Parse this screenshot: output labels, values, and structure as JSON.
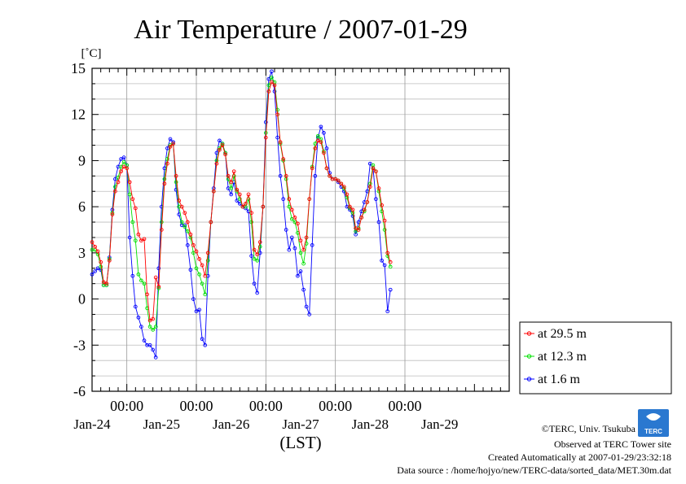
{
  "chart_data": {
    "type": "line",
    "title": "Air Temperature / 2007-01-29",
    "ylabel": "[˚C]",
    "xlabel": "(LST)",
    "ylim": [
      -6,
      15
    ],
    "yticks": [
      "15",
      "12",
      "9",
      "6",
      "3",
      "0",
      "-3",
      "-6"
    ],
    "x_range_hours": [
      -12,
      132
    ],
    "midnight_labels": [
      "00:00",
      "00:00",
      "00:00",
      "00:00",
      "00:00"
    ],
    "date_labels": [
      "Jan-24",
      "Jan-25",
      "Jan-26",
      "Jan-27",
      "Jan-28",
      "Jan-29"
    ],
    "grid": true,
    "legend_position": "right",
    "series": [
      {
        "name": "at 29.5 m",
        "color": "#ff0000",
        "points": [
          [
            -12,
            3.7
          ],
          [
            -11,
            3.4
          ],
          [
            -10,
            3.1
          ],
          [
            -9,
            2.4
          ],
          [
            -8,
            1.1
          ],
          [
            -7,
            1.0
          ],
          [
            -6,
            2.5
          ],
          [
            -5,
            5.5
          ],
          [
            -4,
            7.0
          ],
          [
            -3,
            7.6
          ],
          [
            -2,
            8.3
          ],
          [
            -1,
            8.6
          ],
          [
            0,
            8.5
          ],
          [
            1,
            7.6
          ],
          [
            2,
            6.5
          ],
          [
            3,
            5.9
          ],
          [
            4,
            4.2
          ],
          [
            5,
            3.8
          ],
          [
            6,
            3.9
          ],
          [
            7,
            0.3
          ],
          [
            8,
            -1.4
          ],
          [
            9,
            -1.3
          ],
          [
            10,
            1.4
          ],
          [
            11,
            0.8
          ],
          [
            12,
            4.5
          ],
          [
            13,
            7.5
          ],
          [
            14,
            8.8
          ],
          [
            15,
            9.9
          ],
          [
            16,
            10.1
          ],
          [
            17,
            8.0
          ],
          [
            18,
            6.4
          ],
          [
            19,
            6.0
          ],
          [
            20,
            5.6
          ],
          [
            21,
            5.0
          ],
          [
            22,
            4.2
          ],
          [
            23,
            3.5
          ],
          [
            24,
            3.1
          ],
          [
            25,
            2.6
          ],
          [
            26,
            2.2
          ],
          [
            27,
            1.5
          ],
          [
            28,
            3.0
          ],
          [
            29,
            5.0
          ],
          [
            30,
            7.0
          ],
          [
            31,
            8.8
          ],
          [
            32,
            9.7
          ],
          [
            33,
            10.0
          ],
          [
            34,
            9.4
          ],
          [
            35,
            8.0
          ],
          [
            36,
            7.6
          ],
          [
            37,
            8.3
          ],
          [
            38,
            7.1
          ],
          [
            39,
            6.8
          ],
          [
            40,
            6.0
          ],
          [
            41,
            6.2
          ],
          [
            42,
            6.8
          ],
          [
            43,
            5.6
          ],
          [
            44,
            3.2
          ],
          [
            45,
            2.9
          ],
          [
            46,
            3.7
          ],
          [
            47,
            6.0
          ],
          [
            48,
            10.5
          ],
          [
            49,
            13.5
          ],
          [
            50,
            14.1
          ],
          [
            51,
            13.9
          ],
          [
            52,
            12.0
          ],
          [
            53,
            10.2
          ],
          [
            54,
            9.1
          ],
          [
            55,
            8.0
          ],
          [
            56,
            6.5
          ],
          [
            57,
            5.8
          ],
          [
            58,
            5.3
          ],
          [
            59,
            4.9
          ],
          [
            60,
            3.8
          ],
          [
            61,
            3.2
          ],
          [
            62,
            4.0
          ],
          [
            63,
            6.5
          ],
          [
            64,
            8.5
          ],
          [
            65,
            9.8
          ],
          [
            66,
            10.3
          ],
          [
            67,
            10.2
          ],
          [
            68,
            9.5
          ],
          [
            69,
            8.5
          ],
          [
            70,
            8.0
          ],
          [
            71,
            7.8
          ],
          [
            72,
            7.8
          ],
          [
            73,
            7.7
          ],
          [
            74,
            7.5
          ],
          [
            75,
            7.3
          ],
          [
            76,
            6.8
          ],
          [
            77,
            6.0
          ],
          [
            78,
            5.8
          ],
          [
            79,
            4.6
          ],
          [
            80,
            4.5
          ],
          [
            81,
            5.3
          ],
          [
            82,
            5.8
          ],
          [
            83,
            6.3
          ],
          [
            84,
            7.3
          ],
          [
            85,
            8.5
          ],
          [
            86,
            8.3
          ],
          [
            87,
            7.2
          ],
          [
            88,
            6.1
          ],
          [
            89,
            5.1
          ],
          [
            90,
            3.0
          ],
          [
            91,
            2.4
          ]
        ]
      },
      {
        "name": "at 12.3 m",
        "color": "#00e000",
        "points": [
          [
            -12,
            3.2
          ],
          [
            -11,
            3.2
          ],
          [
            -10,
            2.9
          ],
          [
            -9,
            2.1
          ],
          [
            -8,
            0.9
          ],
          [
            -7,
            0.9
          ],
          [
            -6,
            2.6
          ],
          [
            -5,
            5.6
          ],
          [
            -4,
            7.3
          ],
          [
            -3,
            7.9
          ],
          [
            -2,
            8.6
          ],
          [
            -1,
            8.9
          ],
          [
            0,
            8.7
          ],
          [
            1,
            6.8
          ],
          [
            2,
            5.0
          ],
          [
            3,
            3.8
          ],
          [
            4,
            1.6
          ],
          [
            5,
            1.2
          ],
          [
            6,
            1.0
          ],
          [
            7,
            -0.6
          ],
          [
            8,
            -1.8
          ],
          [
            9,
            -2.0
          ],
          [
            10,
            -1.8
          ],
          [
            11,
            0.7
          ],
          [
            12,
            5.0
          ],
          [
            13,
            7.8
          ],
          [
            14,
            9.1
          ],
          [
            15,
            10.0
          ],
          [
            16,
            10.1
          ],
          [
            17,
            7.6
          ],
          [
            18,
            6.0
          ],
          [
            19,
            5.0
          ],
          [
            20,
            4.7
          ],
          [
            21,
            4.4
          ],
          [
            22,
            4.0
          ],
          [
            23,
            3.0
          ],
          [
            24,
            2.0
          ],
          [
            25,
            1.6
          ],
          [
            26,
            1.0
          ],
          [
            27,
            0.3
          ],
          [
            28,
            2.5
          ],
          [
            29,
            5.0
          ],
          [
            30,
            7.0
          ],
          [
            31,
            9.0
          ],
          [
            32,
            9.8
          ],
          [
            33,
            10.1
          ],
          [
            34,
            9.5
          ],
          [
            35,
            7.8
          ],
          [
            36,
            7.2
          ],
          [
            37,
            8.0
          ],
          [
            38,
            7.0
          ],
          [
            39,
            6.5
          ],
          [
            40,
            6.0
          ],
          [
            41,
            6.0
          ],
          [
            42,
            6.5
          ],
          [
            43,
            5.0
          ],
          [
            44,
            2.6
          ],
          [
            45,
            2.5
          ],
          [
            46,
            3.4
          ],
          [
            47,
            6.0
          ],
          [
            48,
            10.8
          ],
          [
            49,
            13.9
          ],
          [
            50,
            14.4
          ],
          [
            51,
            14.1
          ],
          [
            52,
            12.3
          ],
          [
            53,
            10.1
          ],
          [
            54,
            9.0
          ],
          [
            55,
            7.8
          ],
          [
            56,
            6.0
          ],
          [
            57,
            5.2
          ],
          [
            58,
            5.0
          ],
          [
            59,
            4.3
          ],
          [
            60,
            3.0
          ],
          [
            61,
            2.3
          ],
          [
            62,
            3.6
          ],
          [
            63,
            6.5
          ],
          [
            64,
            8.6
          ],
          [
            65,
            10.1
          ],
          [
            66,
            10.6
          ],
          [
            67,
            10.4
          ],
          [
            68,
            9.6
          ],
          [
            69,
            8.5
          ],
          [
            70,
            8.0
          ],
          [
            71,
            7.8
          ],
          [
            72,
            7.8
          ],
          [
            73,
            7.7
          ],
          [
            74,
            7.5
          ],
          [
            75,
            7.2
          ],
          [
            76,
            6.6
          ],
          [
            77,
            5.9
          ],
          [
            78,
            5.6
          ],
          [
            79,
            4.4
          ],
          [
            80,
            4.6
          ],
          [
            81,
            5.3
          ],
          [
            82,
            5.7
          ],
          [
            83,
            6.3
          ],
          [
            84,
            7.5
          ],
          [
            85,
            8.7
          ],
          [
            86,
            8.3
          ],
          [
            87,
            7.0
          ],
          [
            88,
            5.7
          ],
          [
            89,
            4.5
          ],
          [
            90,
            2.8
          ],
          [
            91,
            2.1
          ]
        ]
      },
      {
        "name": "at 1.6 m",
        "color": "#0000ff",
        "points": [
          [
            -12,
            1.6
          ],
          [
            -11,
            1.8
          ],
          [
            -10,
            2.0
          ],
          [
            -9,
            1.9
          ],
          [
            -8,
            0.9
          ],
          [
            -7,
            0.9
          ],
          [
            -6,
            2.7
          ],
          [
            -5,
            5.8
          ],
          [
            -4,
            7.8
          ],
          [
            -3,
            8.6
          ],
          [
            -2,
            9.1
          ],
          [
            -1,
            9.2
          ],
          [
            0,
            8.7
          ],
          [
            1,
            4.0
          ],
          [
            2,
            1.5
          ],
          [
            3,
            -0.5
          ],
          [
            4,
            -1.2
          ],
          [
            5,
            -1.8
          ],
          [
            6,
            -2.7
          ],
          [
            7,
            -3.0
          ],
          [
            8,
            -3.0
          ],
          [
            9,
            -3.3
          ],
          [
            10,
            -3.8
          ],
          [
            11,
            2.0
          ],
          [
            12,
            6.0
          ],
          [
            13,
            8.5
          ],
          [
            14,
            9.8
          ],
          [
            15,
            10.4
          ],
          [
            16,
            10.2
          ],
          [
            17,
            7.1
          ],
          [
            18,
            5.5
          ],
          [
            19,
            4.8
          ],
          [
            20,
            4.8
          ],
          [
            21,
            3.5
          ],
          [
            22,
            1.9
          ],
          [
            23,
            0.0
          ],
          [
            24,
            -0.8
          ],
          [
            25,
            -0.7
          ],
          [
            26,
            -2.6
          ],
          [
            27,
            -3.0
          ],
          [
            28,
            1.5
          ],
          [
            29,
            5.0
          ],
          [
            30,
            7.2
          ],
          [
            31,
            9.5
          ],
          [
            32,
            10.3
          ],
          [
            33,
            10.1
          ],
          [
            34,
            9.5
          ],
          [
            35,
            7.2
          ],
          [
            36,
            6.8
          ],
          [
            37,
            7.6
          ],
          [
            38,
            6.4
          ],
          [
            39,
            6.2
          ],
          [
            40,
            6.0
          ],
          [
            41,
            5.9
          ],
          [
            42,
            5.7
          ],
          [
            43,
            2.8
          ],
          [
            44,
            1.0
          ],
          [
            45,
            0.4
          ],
          [
            46,
            3.0
          ],
          [
            47,
            6.0
          ],
          [
            48,
            11.5
          ],
          [
            49,
            14.3
          ],
          [
            50,
            14.8
          ],
          [
            51,
            13.5
          ],
          [
            52,
            10.5
          ],
          [
            53,
            8.0
          ],
          [
            54,
            6.5
          ],
          [
            55,
            4.5
          ],
          [
            56,
            3.2
          ],
          [
            57,
            4.0
          ],
          [
            58,
            3.3
          ],
          [
            59,
            1.5
          ],
          [
            60,
            1.8
          ],
          [
            61,
            0.6
          ],
          [
            62,
            -0.5
          ],
          [
            63,
            -1.0
          ],
          [
            64,
            3.5
          ],
          [
            65,
            8.0
          ],
          [
            66,
            10.5
          ],
          [
            67,
            11.2
          ],
          [
            68,
            10.8
          ],
          [
            69,
            9.8
          ],
          [
            70,
            8.2
          ],
          [
            71,
            7.8
          ],
          [
            72,
            7.8
          ],
          [
            73,
            7.6
          ],
          [
            74,
            7.3
          ],
          [
            75,
            7.0
          ],
          [
            76,
            6.0
          ],
          [
            77,
            5.8
          ],
          [
            78,
            5.4
          ],
          [
            79,
            4.2
          ],
          [
            80,
            5.0
          ],
          [
            81,
            5.7
          ],
          [
            82,
            6.3
          ],
          [
            83,
            7.0
          ],
          [
            84,
            8.8
          ],
          [
            85,
            8.5
          ],
          [
            86,
            6.5
          ],
          [
            87,
            5.0
          ],
          [
            88,
            2.5
          ],
          [
            89,
            2.2
          ],
          [
            90,
            -0.8
          ],
          [
            91,
            0.6
          ]
        ]
      }
    ]
  },
  "credits": {
    "line1": "©TERC, Univ. Tsukuba",
    "line2": "Observed at TERC Tower site",
    "line3": "Created Automatically at 2007-01-29/23:32:18",
    "line4": "Data source : /home/hojyo/new/TERC-data/sorted_data/MET.30m.dat"
  },
  "logo": {
    "text": "TERC"
  }
}
